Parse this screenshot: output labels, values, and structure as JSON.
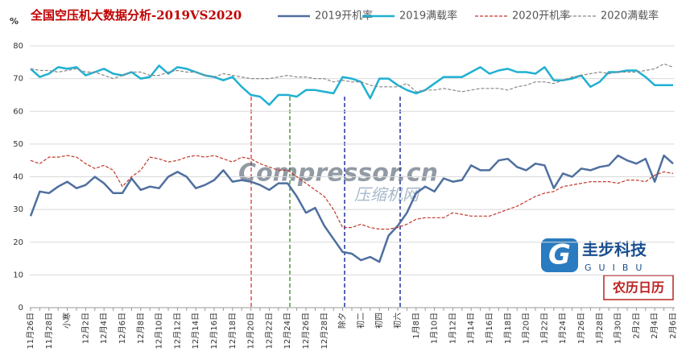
{
  "chart_data": {
    "type": "line",
    "title": "全国空压机大数据分析-2019VS2020",
    "ylabel": "%",
    "categories": [
      "11月26日",
      null,
      "11月28日",
      null,
      "小寒",
      null,
      "12月2日",
      null,
      "12月4日",
      null,
      "12月6日",
      null,
      "12月8日",
      null,
      "12月10日",
      null,
      "12月12日",
      null,
      "12月14日",
      null,
      "12月16日",
      null,
      "12月18日",
      null,
      "12月20日",
      null,
      "12月22日",
      null,
      "12月24日",
      null,
      "12月26日",
      null,
      "12月28日",
      null,
      "除夕",
      null,
      "初二",
      null,
      "初四",
      null,
      "初六",
      null,
      "1月8日",
      null,
      "1月10日",
      null,
      "1月12日",
      null,
      "1月14日",
      null,
      "1月16日",
      null,
      "1月18日",
      null,
      "1月20日",
      null,
      "1月22日",
      null,
      "1月24日",
      null,
      "1月26日",
      null,
      "1月28日",
      null,
      "1月30日",
      null,
      "2月2日",
      null,
      "2月4日",
      null,
      "2月6日"
    ],
    "series": [
      {
        "name": "2019开机率",
        "color": "#4f6f9f",
        "style": "solid",
        "width": 2.5,
        "values": [
          28,
          35.5,
          35,
          37,
          38.5,
          36.5,
          37.5,
          40,
          38,
          35,
          35,
          39.5,
          36,
          37,
          36.5,
          40,
          41.5,
          40,
          36.5,
          37.5,
          39,
          42,
          38.5,
          39,
          38.5,
          37.5,
          36,
          38,
          38,
          34,
          29,
          30.5,
          25,
          21,
          17,
          16.5,
          14.5,
          15.5,
          14,
          22,
          25,
          29,
          35,
          37,
          35.5,
          39.5,
          38.5,
          39,
          43.5,
          42,
          42,
          45,
          45.5,
          43,
          42,
          44,
          43.5,
          36.5,
          41,
          40,
          42.5,
          42,
          43,
          43.5,
          46.5,
          45,
          44,
          45.5,
          38.5,
          46.5,
          44
        ]
      },
      {
        "name": "2019满载率",
        "color": "#1fb0d2",
        "style": "solid",
        "width": 2.5,
        "values": [
          73,
          70.5,
          71.5,
          73.5,
          73,
          73.5,
          71,
          72,
          73,
          71.5,
          71,
          72,
          70,
          70.5,
          74,
          71.5,
          73.5,
          73,
          72,
          71,
          70.5,
          69.5,
          70.5,
          67.5,
          65,
          64.5,
          62,
          65,
          65,
          64.5,
          66.5,
          66.5,
          66,
          65.5,
          70.5,
          70,
          69,
          64,
          70,
          70,
          68,
          66.5,
          65.5,
          66.5,
          68.5,
          70.5,
          70.5,
          70.5,
          72,
          73.5,
          71.5,
          72.5,
          73,
          72,
          72,
          71.5,
          73.5,
          69.5,
          69.5,
          70,
          71,
          67.5,
          69,
          72,
          72,
          72.5,
          72.5,
          70.5,
          68,
          68,
          68
        ]
      },
      {
        "name": "2020开机率",
        "color": "#c0392b",
        "style": "dashed",
        "width": 1.2,
        "values": [
          45,
          44,
          46,
          46,
          46.5,
          46,
          44,
          42.5,
          43.5,
          42,
          37,
          40,
          42,
          46,
          45.5,
          44.5,
          45,
          46,
          46.5,
          46,
          46.5,
          45.5,
          44.5,
          46,
          45.5,
          44,
          43,
          42,
          42,
          40,
          38,
          36,
          34,
          30,
          24.5,
          24.5,
          25.5,
          24.5,
          24,
          24,
          24.5,
          25.5,
          27,
          27.5,
          27.5,
          27.5,
          29,
          28.5,
          28,
          28,
          28,
          29,
          30,
          31,
          32.5,
          34,
          35,
          35.5,
          37,
          37.5,
          38,
          38.5,
          38.5,
          38.5,
          38,
          39,
          39,
          38.5,
          40.5,
          41.5,
          41
        ]
      },
      {
        "name": "2020满载率",
        "color": "#888888",
        "style": "dashed",
        "width": 1.2,
        "values": [
          73,
          72.5,
          72.5,
          72,
          72.5,
          73,
          72,
          72,
          71,
          70,
          71,
          72,
          72,
          71,
          71,
          72,
          72.5,
          72,
          72,
          71,
          70.5,
          71.5,
          71,
          70.5,
          70,
          70,
          70,
          70.5,
          71,
          70.5,
          70.5,
          70,
          70,
          69,
          69.5,
          69,
          69,
          68,
          67.5,
          67.5,
          67.5,
          68.5,
          66,
          66.5,
          66.5,
          67,
          66.5,
          66,
          66.5,
          67,
          67,
          67,
          66.5,
          67.5,
          68,
          69,
          69,
          68.5,
          69.5,
          70.5,
          71,
          71.5,
          72,
          71.5,
          72,
          72,
          72,
          72.5,
          73,
          74.5,
          73.5
        ]
      }
    ],
    "ylim": [
      0,
      80
    ],
    "yticks": [
      0,
      10,
      20,
      30,
      40,
      50,
      60,
      70,
      80
    ],
    "grid": true,
    "watermark": [
      "Compressor.cn",
      "压缩机网"
    ],
    "logo": [
      "圭步科技",
      "GUIBU"
    ],
    "note": "农历日历"
  }
}
